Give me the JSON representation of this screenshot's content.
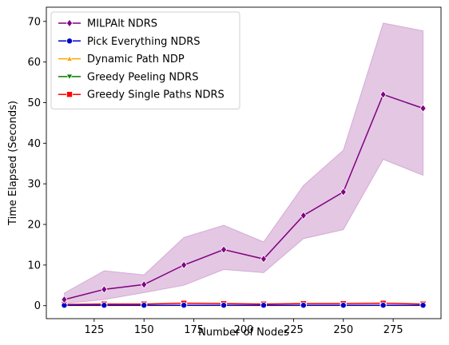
{
  "chart_data": {
    "type": "line",
    "xlabel": "Number of Nodes",
    "ylabel": "Time Elapsed (Seconds)",
    "xlim": [
      101,
      299
    ],
    "ylim": [
      -3.2,
      73.5
    ],
    "x_ticks": [
      125,
      150,
      175,
      200,
      225,
      250,
      275
    ],
    "y_ticks": [
      0,
      10,
      20,
      30,
      40,
      50,
      60,
      70
    ],
    "legend_position": "top-left",
    "grid": false,
    "x": [
      110,
      130,
      150,
      170,
      190,
      210,
      230,
      250,
      270,
      290
    ],
    "series": [
      {
        "name": "MILPAlt NDRS",
        "color": "#800080",
        "marker": "diamond",
        "values": [
          1.5,
          4.0,
          5.2,
          10.0,
          13.8,
          11.5,
          22.2,
          28.0,
          52.0,
          48.6
        ],
        "band_low": [
          0.5,
          1.5,
          3.2,
          5.0,
          8.9,
          8.1,
          16.5,
          18.7,
          36.0,
          32.1
        ],
        "band_high": [
          3.1,
          8.6,
          7.6,
          16.8,
          19.8,
          15.7,
          29.6,
          38.3,
          69.6,
          67.7
        ]
      },
      {
        "name": "Pick Everything NDRS",
        "color": "#0000cc",
        "marker": "circle",
        "values": [
          0.1,
          0.1,
          0.1,
          0.1,
          0.1,
          0.1,
          0.1,
          0.1,
          0.1,
          0.1
        ]
      },
      {
        "name": "Dynamic Path NDP",
        "color": "#ffa500",
        "marker": "triangle-up",
        "values": [
          0.05,
          0.05,
          0.05,
          0.05,
          0.05,
          0.05,
          0.05,
          0.05,
          0.05,
          0.05
        ]
      },
      {
        "name": "Greedy Peeling NDRS",
        "color": "#008000",
        "marker": "triangle-down",
        "values": [
          0.1,
          0.1,
          0.1,
          0.1,
          0.1,
          0.1,
          0.1,
          0.1,
          0.1,
          0.1
        ]
      },
      {
        "name": "Greedy Single Paths NDRS",
        "color": "#ff0000",
        "marker": "square",
        "values": [
          0.3,
          0.4,
          0.4,
          0.6,
          0.5,
          0.4,
          0.5,
          0.5,
          0.6,
          0.4
        ]
      }
    ]
  }
}
